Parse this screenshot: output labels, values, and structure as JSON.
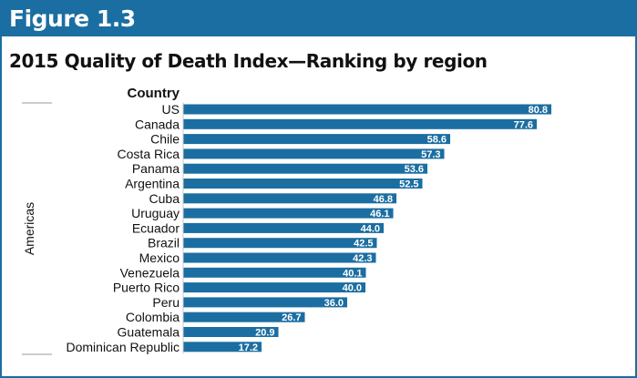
{
  "figure_label": "Figure 1.3",
  "colors": {
    "accent": "#1b6ea1",
    "bar": "#1b6ea1",
    "bar_label": "#ffffff",
    "text": "#111111"
  },
  "chart_data": {
    "type": "bar",
    "orientation": "horizontal",
    "title": "2015 Quality of Death Index—Ranking by region",
    "category_header": "Country",
    "group_label": "Americas",
    "categories": [
      "US",
      "Canada",
      "Chile",
      "Costa Rica",
      "Panama",
      "Argentina",
      "Cuba",
      "Uruguay",
      "Ecuador",
      "Brazil",
      "Mexico",
      "Venezuela",
      "Puerto Rico",
      "Peru",
      "Colombia",
      "Guatemala",
      "Dominican Republic"
    ],
    "values": [
      80.8,
      77.6,
      58.6,
      57.3,
      53.6,
      52.5,
      46.8,
      46.1,
      44.0,
      42.5,
      42.3,
      40.1,
      40.0,
      36.0,
      26.7,
      20.9,
      17.2
    ],
    "value_labels": [
      "80.8",
      "77.6",
      "58.6",
      "57.3",
      "53.6",
      "52.5",
      "46.8",
      "46.1",
      "44.0",
      "42.5",
      "42.3",
      "40.1",
      "40.0",
      "36.0",
      "26.7",
      "20.9",
      "17.2"
    ],
    "xlim": [
      0,
      100
    ],
    "grid": false,
    "legend": "none"
  }
}
